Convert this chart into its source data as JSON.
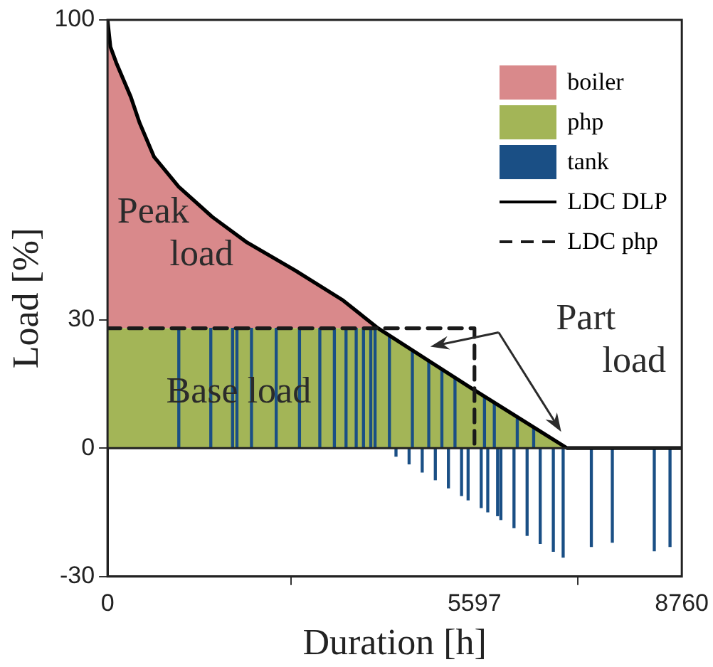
{
  "chart_data": {
    "type": "area",
    "xlabel": "Duration [h]",
    "ylabel": "Load [%]",
    "xlim": [
      0,
      8760
    ],
    "xticks": [
      0,
      5597,
      8760
    ],
    "ylim": [
      -30,
      100
    ],
    "yticks": [
      -30,
      0,
      30,
      100
    ],
    "legend": "top right",
    "annotations": [
      "Peak load",
      "Base load",
      "Part load"
    ],
    "series": [
      {
        "name": "boiler",
        "color": "#d9898b",
        "x": [
          0,
          44,
          133,
          355,
          488,
          710,
          1087,
          1597,
          2129,
          2861,
          3593,
          4125
        ],
        "values": [
          100,
          93.7,
          90,
          82,
          76,
          68,
          61,
          54,
          48,
          41.5,
          34.5,
          28
        ]
      },
      {
        "name": "php",
        "color": "#a3b557",
        "x": [
          0,
          44,
          133,
          355,
          488,
          710,
          1087,
          1597,
          2129,
          2861,
          3593,
          4125,
          5589,
          7008,
          8760
        ],
        "values": [
          28,
          28,
          28,
          28,
          28,
          28,
          28,
          28,
          28,
          28,
          28,
          28,
          13.6,
          0,
          0
        ]
      },
      {
        "name": "tank",
        "type": "bar",
        "color": "#1a4f85",
        "x": [
          1087,
          1575,
          1907,
          1974,
          2196,
          2573,
          2928,
          3238,
          3460,
          3638,
          3793,
          3904,
          4015,
          4081,
          4300,
          4400,
          4600,
          4650,
          4800,
          4900,
          5000,
          5100,
          5200,
          5300,
          5400,
          5500,
          5700,
          5750,
          5800,
          5900,
          5950,
          6000,
          6200,
          6250,
          6400,
          6500,
          6600,
          6800,
          6850,
          6950,
          7380,
          7700,
          8340,
          8580
        ],
        "values": [
          28,
          28,
          28,
          28,
          28,
          28,
          28,
          28,
          28,
          28,
          28,
          28,
          28,
          28,
          26.1,
          -1.9,
          -3.7,
          22.7,
          -5.6,
          20.3,
          -7.4,
          18.3,
          -9.3,
          16.4,
          -11.1,
          -12.1,
          -13.9,
          12.1,
          -14.9,
          10.6,
          -15.8,
          -16.7,
          -18.6,
          7.2,
          -20.4,
          4.8,
          -22.3,
          -24.1,
          null,
          -25.5,
          -23,
          -22,
          -24,
          -23
        ]
      },
      {
        "name": "LDC DLP",
        "type": "line",
        "color": "#000000",
        "line_style": "solid",
        "x": [
          0,
          44,
          133,
          355,
          488,
          710,
          1087,
          1597,
          2129,
          2861,
          3593,
          4125,
          5589,
          7008,
          8760
        ],
        "values": [
          100,
          93.7,
          90,
          82,
          76,
          68,
          61,
          54,
          48,
          41.5,
          34.5,
          28,
          13.6,
          0,
          0
        ]
      },
      {
        "name": "LDC php",
        "type": "line",
        "color": "#1a1a1a",
        "line_style": "dashed",
        "x": [
          0,
          5597,
          5597
        ],
        "values": [
          28,
          28,
          0
        ]
      }
    ]
  }
}
